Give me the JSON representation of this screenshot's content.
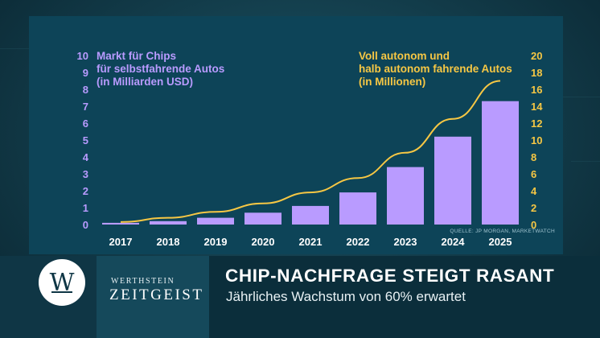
{
  "chart_data": {
    "type": "bar",
    "categories": [
      "2017",
      "2018",
      "2019",
      "2020",
      "2021",
      "2022",
      "2023",
      "2024",
      "2025"
    ],
    "series": [
      {
        "name": "Markt für Chips für selbstfahrende Autos (in Milliarden USD)",
        "type": "bar",
        "axis": "left",
        "values": [
          0.1,
          0.2,
          0.4,
          0.7,
          1.1,
          1.9,
          3.4,
          5.2,
          7.3
        ]
      },
      {
        "name": "Voll autonom und halb autonom fahrende Autos (in Millionen)",
        "type": "line",
        "axis": "right",
        "values": [
          0.3,
          0.8,
          1.5,
          2.5,
          3.8,
          5.5,
          8.5,
          12.5,
          17
        ]
      }
    ],
    "left_axis": {
      "min": 0,
      "max": 10,
      "ticks": [
        "0",
        "1",
        "2",
        "3",
        "4",
        "5",
        "6",
        "7",
        "8",
        "9",
        "10"
      ]
    },
    "right_axis": {
      "min": 0,
      "max": 20,
      "ticks": [
        "0",
        "2",
        "4",
        "6",
        "8",
        "10",
        "12",
        "14",
        "16",
        "18",
        "20"
      ]
    },
    "left_title_lines": [
      "Markt für Chips",
      "für selbstfahrende Autos",
      "(in Milliarden USD)"
    ],
    "right_title_lines": [
      "Voll autonom und",
      "halb autonom fahrende Autos",
      "(in Millionen)"
    ],
    "source": "QUELLE: JP MORGAN, MARKETWATCH",
    "colors": {
      "bar": "#b99bff",
      "line": "#f6c744",
      "left_axis": "#b99bff",
      "right_axis": "#f6c744",
      "x_labels": "#ffffff"
    },
    "grid": false
  },
  "footer": {
    "brand_top": "WERTHSTEIN",
    "brand_bottom": "ZEITGEIST",
    "logo_letter": "W",
    "headline": "CHIP-NACHFRAGE STEIGT RASANT",
    "subline": "Jährliches Wachstum von 60% erwartet"
  }
}
